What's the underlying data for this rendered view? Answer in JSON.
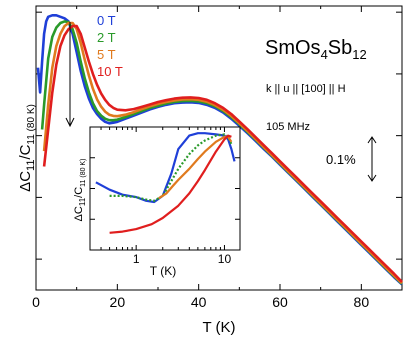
{
  "chart_data": {
    "type": "line",
    "title": "SmOs4Sb12",
    "title_parts": {
      "base": "SmOs",
      "sub1": "4",
      "mid": "Sb",
      "sub2": "12"
    },
    "ylabel_main": "ΔC",
    "ylabel_sub1": "11",
    "ylabel_slash": "/C",
    "ylabel_sub2": "11 (80 K)",
    "xlabel": "T (K)",
    "xlim": [
      0,
      90
    ],
    "xticks": [
      0,
      20,
      40,
      60,
      80
    ],
    "y_arbitrary": true,
    "annotations": {
      "orientation": "k || u || [100] || H",
      "frequency": "105 MHz",
      "scale_bar": "0.1%"
    },
    "colors": {
      "0T": "#1f3fd8",
      "2T": "#2a9a2a",
      "5T": "#e07a1e",
      "10T": "#e01e1e"
    },
    "series": [
      {
        "name": "0 T",
        "color": "#1f3fd8",
        "x": [
          0.5,
          1,
          1.5,
          2,
          2.5,
          3,
          4,
          5,
          6,
          7,
          8,
          9,
          10,
          11,
          12,
          13,
          14,
          15,
          16,
          17,
          18,
          19,
          20,
          22,
          24,
          26,
          28,
          30,
          32,
          34,
          36,
          38,
          40,
          42,
          44,
          46,
          48,
          50,
          52,
          54,
          56,
          58,
          60,
          62,
          64,
          66,
          68,
          70,
          72,
          74,
          76,
          78,
          80,
          82,
          84,
          86,
          88,
          90
        ],
        "y": [
          0.82,
          0.74,
          0.84,
          0.93,
          0.97,
          0.985,
          0.99,
          0.99,
          0.985,
          0.98,
          0.97,
          0.93,
          0.87,
          0.81,
          0.76,
          0.72,
          0.69,
          0.67,
          0.655,
          0.645,
          0.64,
          0.642,
          0.645,
          0.655,
          0.665,
          0.675,
          0.685,
          0.693,
          0.7,
          0.705,
          0.707,
          0.708,
          0.706,
          0.7,
          0.69,
          0.675,
          0.655,
          0.632,
          0.608,
          0.583,
          0.557,
          0.532,
          0.506,
          0.48,
          0.454,
          0.428,
          0.402,
          0.376,
          0.35,
          0.324,
          0.298,
          0.272,
          0.246,
          0.22,
          0.194,
          0.168,
          0.142,
          0.118
        ]
      },
      {
        "name": "2 T",
        "color": "#2a9a2a",
        "x": [
          1.5,
          2,
          3,
          4,
          5,
          6,
          7,
          8,
          9,
          10,
          11,
          12,
          13,
          14,
          15,
          16,
          17,
          18,
          19,
          20,
          22,
          24,
          26,
          28,
          30,
          32,
          34,
          36,
          38,
          40,
          42,
          44,
          46,
          48,
          50,
          52,
          54,
          56,
          58,
          60,
          62,
          64,
          66,
          68,
          70,
          72,
          74,
          76,
          78,
          80,
          82,
          84,
          86,
          88,
          90
        ],
        "y": [
          0.62,
          0.7,
          0.85,
          0.92,
          0.95,
          0.965,
          0.97,
          0.968,
          0.945,
          0.9,
          0.84,
          0.785,
          0.74,
          0.705,
          0.68,
          0.665,
          0.655,
          0.65,
          0.65,
          0.652,
          0.66,
          0.67,
          0.68,
          0.69,
          0.697,
          0.704,
          0.709,
          0.712,
          0.713,
          0.711,
          0.705,
          0.695,
          0.68,
          0.66,
          0.637,
          0.612,
          0.587,
          0.561,
          0.535,
          0.509,
          0.483,
          0.457,
          0.431,
          0.405,
          0.379,
          0.353,
          0.327,
          0.301,
          0.275,
          0.249,
          0.223,
          0.197,
          0.171,
          0.145,
          0.12
        ]
      },
      {
        "name": "5 T",
        "color": "#e07a1e",
        "x": [
          2,
          3,
          4,
          5,
          6,
          7,
          8,
          9,
          10,
          11,
          12,
          13,
          14,
          15,
          16,
          17,
          18,
          19,
          20,
          22,
          24,
          26,
          28,
          30,
          32,
          34,
          36,
          38,
          40,
          42,
          44,
          46,
          48,
          50,
          52,
          54,
          56,
          58,
          60,
          62,
          64,
          66,
          68,
          70,
          72,
          74,
          76,
          78,
          80,
          82,
          84,
          86,
          88,
          90
        ],
        "y": [
          0.55,
          0.7,
          0.82,
          0.89,
          0.93,
          0.955,
          0.965,
          0.965,
          0.945,
          0.9,
          0.845,
          0.795,
          0.752,
          0.718,
          0.694,
          0.678,
          0.668,
          0.664,
          0.663,
          0.668,
          0.676,
          0.686,
          0.695,
          0.703,
          0.709,
          0.714,
          0.717,
          0.718,
          0.716,
          0.71,
          0.699,
          0.684,
          0.664,
          0.64,
          0.615,
          0.589,
          0.563,
          0.537,
          0.511,
          0.485,
          0.459,
          0.433,
          0.407,
          0.381,
          0.355,
          0.329,
          0.303,
          0.277,
          0.251,
          0.225,
          0.199,
          0.173,
          0.147,
          0.122
        ]
      },
      {
        "name": "10 T",
        "color": "#e01e1e",
        "x": [
          2,
          3,
          4,
          5,
          6,
          7,
          8,
          9,
          10,
          11,
          12,
          13,
          14,
          15,
          16,
          17,
          18,
          19,
          20,
          22,
          24,
          26,
          28,
          30,
          32,
          34,
          36,
          38,
          40,
          42,
          44,
          46,
          48,
          50,
          52,
          54,
          56,
          58,
          60,
          62,
          64,
          66,
          68,
          70,
          72,
          74,
          76,
          78,
          80,
          82,
          84,
          86,
          88,
          90
        ],
        "y": [
          0.5,
          0.62,
          0.74,
          0.83,
          0.89,
          0.925,
          0.945,
          0.955,
          0.955,
          0.93,
          0.885,
          0.84,
          0.8,
          0.765,
          0.737,
          0.716,
          0.7,
          0.69,
          0.684,
          0.682,
          0.686,
          0.693,
          0.701,
          0.709,
          0.715,
          0.72,
          0.723,
          0.724,
          0.722,
          0.716,
          0.705,
          0.69,
          0.67,
          0.646,
          0.621,
          0.595,
          0.569,
          0.543,
          0.517,
          0.491,
          0.465,
          0.439,
          0.413,
          0.387,
          0.361,
          0.335,
          0.309,
          0.283,
          0.257,
          0.231,
          0.205,
          0.179,
          0.153,
          0.126
        ]
      }
    ],
    "inset": {
      "xlabel": "T (K)",
      "ylabel_main": "ΔC",
      "ylabel_sub1": "11",
      "ylabel_slash": "/C",
      "ylabel_sub2": "11 (80 K)",
      "xscale": "log",
      "xlim": [
        0.3,
        15
      ],
      "xticks": [
        1,
        10
      ],
      "xtick_labels": [
        "1",
        "10"
      ],
      "series": [
        {
          "name": "0 T",
          "color": "#1f3fd8",
          "x": [
            0.35,
            0.5,
            0.7,
            1.0,
            1.3,
            1.6,
            2.0,
            2.5,
            3.0,
            4.0,
            5.0,
            6.0,
            8.0,
            10.0,
            11.0,
            12.0,
            13.0
          ],
          "y": [
            0.55,
            0.49,
            0.45,
            0.43,
            0.4,
            0.39,
            0.44,
            0.62,
            0.82,
            0.93,
            0.95,
            0.95,
            0.94,
            0.93,
            0.9,
            0.82,
            0.72
          ]
        },
        {
          "name": "2 T",
          "color": "#2a9a2a",
          "x": [
            0.5,
            0.7,
            1.0,
            1.3,
            1.6,
            2.0,
            2.5,
            3.0,
            4.0,
            5.0,
            6.0,
            8.0,
            10.0,
            11.0,
            12.0
          ],
          "y": [
            0.44,
            0.44,
            0.43,
            0.41,
            0.4,
            0.44,
            0.56,
            0.66,
            0.78,
            0.85,
            0.89,
            0.93,
            0.94,
            0.92,
            0.86
          ]
        },
        {
          "name": "5 T",
          "color": "#e07a1e",
          "x": [
            1.8,
            2.2,
            2.6,
            3.0,
            4.0,
            5.0,
            6.0,
            8.0,
            10.0,
            11.0,
            12.0
          ],
          "y": [
            0.42,
            0.46,
            0.52,
            0.57,
            0.66,
            0.74,
            0.8,
            0.88,
            0.92,
            0.92,
            0.88
          ]
        },
        {
          "name": "10 T",
          "color": "#e01e1e",
          "x": [
            0.5,
            0.7,
            1.0,
            1.5,
            2.0,
            3.0,
            4.0,
            5.0,
            6.0,
            8.0,
            10.0,
            11.0,
            12.0
          ],
          "y": [
            0.14,
            0.15,
            0.17,
            0.21,
            0.26,
            0.36,
            0.46,
            0.56,
            0.65,
            0.8,
            0.9,
            0.93,
            0.92
          ]
        }
      ]
    }
  }
}
